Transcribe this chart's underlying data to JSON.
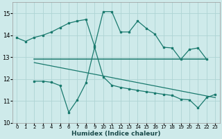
{
  "xlabel": "Humidex (Indice chaleur)",
  "bg_color": "#ceeaea",
  "grid_color": "#aed4d4",
  "line_color": "#1a7a6e",
  "xlim": [
    -0.5,
    23.5
  ],
  "ylim": [
    10,
    15.5
  ],
  "yticks": [
    10,
    11,
    12,
    13,
    14,
    15
  ],
  "xticks": [
    0,
    1,
    2,
    3,
    4,
    5,
    6,
    7,
    8,
    9,
    10,
    11,
    12,
    13,
    14,
    15,
    16,
    17,
    18,
    19,
    20,
    21,
    22,
    23
  ],
  "line1_x": [
    0,
    1,
    2,
    3,
    4,
    5,
    6,
    7,
    8,
    9,
    10,
    11,
    12,
    13,
    14,
    15,
    16,
    17,
    18,
    19,
    20,
    21,
    22
  ],
  "line1_y": [
    13.88,
    13.72,
    13.9,
    14.0,
    14.15,
    14.35,
    14.55,
    14.65,
    14.72,
    13.5,
    15.08,
    15.08,
    14.15,
    14.15,
    14.65,
    14.32,
    14.05,
    13.45,
    13.42,
    12.9,
    13.35,
    13.42,
    12.9
  ],
  "line2_x": [
    2,
    22
  ],
  "line2_y": [
    12.9,
    12.9
  ],
  "line3_x": [
    2,
    23
  ],
  "line3_y": [
    12.75,
    11.15
  ],
  "line4_x": [
    2,
    3,
    4,
    5,
    6,
    7,
    8,
    9,
    10,
    11,
    12,
    13,
    14,
    15,
    16,
    17,
    18,
    19,
    20,
    21,
    22,
    23
  ],
  "line4_y": [
    11.9,
    11.9,
    11.85,
    11.7,
    10.48,
    11.05,
    11.82,
    13.45,
    12.1,
    11.72,
    11.62,
    11.55,
    11.48,
    11.42,
    11.36,
    11.3,
    11.25,
    11.08,
    11.05,
    10.68,
    11.15,
    11.3
  ]
}
